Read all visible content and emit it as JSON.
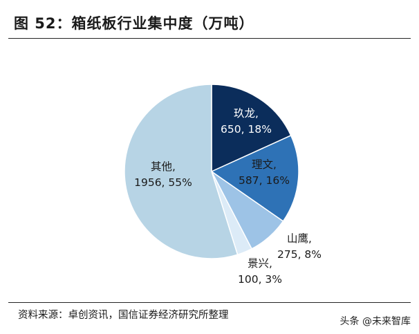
{
  "header": {
    "title": "图 52：箱纸板行业集中度（万吨）"
  },
  "footer": {
    "source": "资料来源：卓创资讯，国信证券经济研究所整理",
    "watermark": "头条 @未来智库"
  },
  "chart_data": {
    "type": "pie",
    "slices": [
      {
        "name": "玖龙",
        "value": 650,
        "pct": "18%",
        "text": "650, 18%",
        "color": "#0b2d5b",
        "label_color": "#ffffff"
      },
      {
        "name": "理文",
        "value": 587,
        "pct": "16%",
        "text": "587, 16%",
        "color": "#2e72b6",
        "label_color": "#1a1a1a"
      },
      {
        "name": "山鹰",
        "value": 275,
        "pct": "8%",
        "text": "275, 8%",
        "color": "#9dc3e6",
        "label_color": "#1a1a1a"
      },
      {
        "name": "景兴",
        "value": 100,
        "pct": "3%",
        "text": "100, 3%",
        "color": "#dcebf7",
        "label_color": "#1a1a1a"
      },
      {
        "name": "其他",
        "value": 1956,
        "pct": "55%",
        "text": "1956, 55%",
        "color": "#b7d4e5",
        "label_color": "#1a1a1a"
      }
    ]
  }
}
